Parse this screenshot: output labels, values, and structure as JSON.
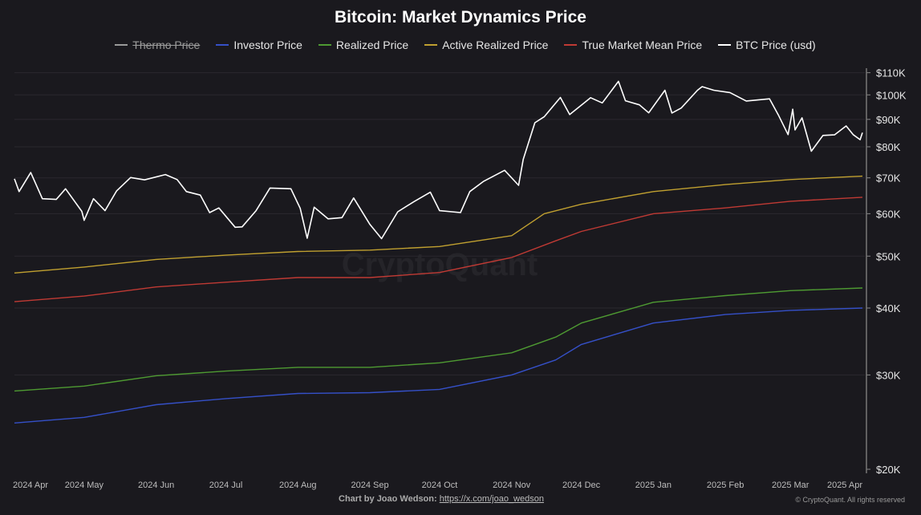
{
  "chart_data": {
    "type": "line",
    "title": "Bitcoin: Market Dynamics Price",
    "y_scale": "log",
    "ylim": [
      20000,
      115000
    ],
    "xlim": [
      "2024-04-01",
      "2025-04-01"
    ],
    "grid": "horizontal",
    "legend_position": "top",
    "y_ticks": [
      {
        "v": 20000,
        "label": "$20K"
      },
      {
        "v": 30000,
        "label": "$30K"
      },
      {
        "v": 40000,
        "label": "$40K"
      },
      {
        "v": 50000,
        "label": "$50K"
      },
      {
        "v": 60000,
        "label": "$60K"
      },
      {
        "v": 70000,
        "label": "$70K"
      },
      {
        "v": 80000,
        "label": "$80K"
      },
      {
        "v": 90000,
        "label": "$90K"
      },
      {
        "v": 100000,
        "label": "$100K"
      },
      {
        "v": 110000,
        "label": "$110K"
      }
    ],
    "x_ticks": [
      {
        "d": "2024-04-01",
        "label": "2024 Apr"
      },
      {
        "d": "2024-05-01",
        "label": "2024 May"
      },
      {
        "d": "2024-06-01",
        "label": "2024 Jun"
      },
      {
        "d": "2024-07-01",
        "label": "2024 Jul"
      },
      {
        "d": "2024-08-01",
        "label": "2024 Aug"
      },
      {
        "d": "2024-09-01",
        "label": "2024 Sep"
      },
      {
        "d": "2024-10-01",
        "label": "2024 Oct"
      },
      {
        "d": "2024-11-01",
        "label": "2024 Nov"
      },
      {
        "d": "2024-12-01",
        "label": "2024 Dec"
      },
      {
        "d": "2025-01-01",
        "label": "2025 Jan"
      },
      {
        "d": "2025-02-01",
        "label": "2025 Feb"
      },
      {
        "d": "2025-03-01",
        "label": "2025 Mar"
      },
      {
        "d": "2025-04-01",
        "label": "2025 Apr"
      }
    ],
    "series": [
      {
        "name": "Thermo Price",
        "color": "#9a9a9a",
        "hidden": true,
        "points": []
      },
      {
        "name": "Investor Price",
        "color": "#3550c8",
        "points": [
          [
            "2024-04-01",
            24400
          ],
          [
            "2024-05-01",
            25000
          ],
          [
            "2024-06-01",
            26400
          ],
          [
            "2024-07-01",
            27100
          ],
          [
            "2024-08-01",
            27700
          ],
          [
            "2024-09-01",
            27800
          ],
          [
            "2024-10-01",
            28200
          ],
          [
            "2024-11-01",
            30000
          ],
          [
            "2024-11-20",
            32000
          ],
          [
            "2024-12-01",
            34200
          ],
          [
            "2025-01-01",
            37500
          ],
          [
            "2025-02-01",
            38900
          ],
          [
            "2025-03-01",
            39600
          ],
          [
            "2025-04-01",
            40000
          ]
        ]
      },
      {
        "name": "Realized Price",
        "color": "#4e9a32",
        "points": [
          [
            "2024-04-01",
            28000
          ],
          [
            "2024-05-01",
            28600
          ],
          [
            "2024-06-01",
            29900
          ],
          [
            "2024-07-01",
            30500
          ],
          [
            "2024-08-01",
            31000
          ],
          [
            "2024-09-01",
            31000
          ],
          [
            "2024-10-01",
            31600
          ],
          [
            "2024-11-01",
            33000
          ],
          [
            "2024-11-20",
            35300
          ],
          [
            "2024-12-01",
            37500
          ],
          [
            "2025-01-01",
            41000
          ],
          [
            "2025-02-01",
            42200
          ],
          [
            "2025-03-01",
            43100
          ],
          [
            "2025-04-01",
            43600
          ]
        ]
      },
      {
        "name": "Active Realized Price",
        "color": "#c0a030",
        "points": [
          [
            "2024-04-01",
            46500
          ],
          [
            "2024-05-01",
            47700
          ],
          [
            "2024-06-01",
            49300
          ],
          [
            "2024-07-01",
            50200
          ],
          [
            "2024-08-01",
            51000
          ],
          [
            "2024-09-01",
            51300
          ],
          [
            "2024-10-01",
            52100
          ],
          [
            "2024-11-01",
            54600
          ],
          [
            "2024-11-15",
            60000
          ],
          [
            "2024-12-01",
            62500
          ],
          [
            "2025-01-01",
            66000
          ],
          [
            "2025-02-01",
            68000
          ],
          [
            "2025-03-01",
            69500
          ],
          [
            "2025-04-01",
            70500
          ]
        ]
      },
      {
        "name": "True Market Mean Price",
        "color": "#c03a34",
        "points": [
          [
            "2024-04-01",
            41100
          ],
          [
            "2024-05-01",
            42100
          ],
          [
            "2024-06-01",
            43800
          ],
          [
            "2024-07-01",
            44700
          ],
          [
            "2024-08-01",
            45600
          ],
          [
            "2024-09-01",
            45600
          ],
          [
            "2024-10-01",
            46600
          ],
          [
            "2024-11-01",
            49700
          ],
          [
            "2024-11-20",
            53400
          ],
          [
            "2024-12-01",
            55600
          ],
          [
            "2025-01-01",
            60000
          ],
          [
            "2025-02-01",
            61500
          ],
          [
            "2025-03-01",
            63300
          ],
          [
            "2025-04-01",
            64400
          ]
        ]
      },
      {
        "name": "BTC Price (usd)",
        "color": "#ffffff",
        "points": [
          [
            "2024-04-01",
            69700
          ],
          [
            "2024-04-03",
            66000
          ],
          [
            "2024-04-08",
            71600
          ],
          [
            "2024-04-13",
            64000
          ],
          [
            "2024-04-19",
            63800
          ],
          [
            "2024-04-23",
            66800
          ],
          [
            "2024-04-30",
            60600
          ],
          [
            "2024-05-01",
            58300
          ],
          [
            "2024-05-05",
            64000
          ],
          [
            "2024-05-10",
            60800
          ],
          [
            "2024-05-15",
            66200
          ],
          [
            "2024-05-21",
            70100
          ],
          [
            "2024-05-27",
            69400
          ],
          [
            "2024-06-05",
            71000
          ],
          [
            "2024-06-10",
            69500
          ],
          [
            "2024-06-14",
            66000
          ],
          [
            "2024-06-20",
            65000
          ],
          [
            "2024-06-24",
            60300
          ],
          [
            "2024-06-28",
            61500
          ],
          [
            "2024-07-05",
            56600
          ],
          [
            "2024-07-08",
            56700
          ],
          [
            "2024-07-14",
            60800
          ],
          [
            "2024-07-20",
            67000
          ],
          [
            "2024-07-29",
            66800
          ],
          [
            "2024-08-02",
            61400
          ],
          [
            "2024-08-05",
            54000
          ],
          [
            "2024-08-08",
            61700
          ],
          [
            "2024-08-14",
            58700
          ],
          [
            "2024-08-20",
            59000
          ],
          [
            "2024-08-25",
            64200
          ],
          [
            "2024-09-01",
            57300
          ],
          [
            "2024-09-06",
            53900
          ],
          [
            "2024-09-13",
            60500
          ],
          [
            "2024-09-20",
            63200
          ],
          [
            "2024-09-27",
            65800
          ],
          [
            "2024-10-01",
            60800
          ],
          [
            "2024-10-10",
            60300
          ],
          [
            "2024-10-14",
            66000
          ],
          [
            "2024-10-20",
            69000
          ],
          [
            "2024-10-29",
            72300
          ],
          [
            "2024-11-04",
            67800
          ],
          [
            "2024-11-06",
            75800
          ],
          [
            "2024-11-11",
            88700
          ],
          [
            "2024-11-15",
            91000
          ],
          [
            "2024-11-22",
            98900
          ],
          [
            "2024-11-26",
            91900
          ],
          [
            "2024-12-05",
            98800
          ],
          [
            "2024-12-10",
            96600
          ],
          [
            "2024-12-17",
            106000
          ],
          [
            "2024-12-20",
            97500
          ],
          [
            "2024-12-26",
            95800
          ],
          [
            "2024-12-30",
            92600
          ],
          [
            "2025-01-06",
            102000
          ],
          [
            "2025-01-09",
            92500
          ],
          [
            "2025-01-13",
            94500
          ],
          [
            "2025-01-20",
            102000
          ],
          [
            "2025-01-22",
            103600
          ],
          [
            "2025-01-27",
            102000
          ],
          [
            "2025-02-03",
            101000
          ],
          [
            "2025-02-10",
            97400
          ],
          [
            "2025-02-20",
            98300
          ],
          [
            "2025-02-24",
            91400
          ],
          [
            "2025-02-28",
            84300
          ],
          [
            "2025-03-02",
            94000
          ],
          [
            "2025-03-03",
            86000
          ],
          [
            "2025-03-06",
            90600
          ],
          [
            "2025-03-10",
            78500
          ],
          [
            "2025-03-15",
            84000
          ],
          [
            "2025-03-20",
            84200
          ],
          [
            "2025-03-25",
            87500
          ],
          [
            "2025-03-28",
            84300
          ],
          [
            "2025-03-31",
            82500
          ],
          [
            "2025-04-01",
            85000
          ]
        ]
      }
    ],
    "watermark": "CryptoQuant"
  },
  "footer": {
    "credit": "Chart by Joao Wedson:",
    "link": "https://x.com/joao_wedson",
    "copyright": "© CryptoQuant. All rights reserved"
  }
}
